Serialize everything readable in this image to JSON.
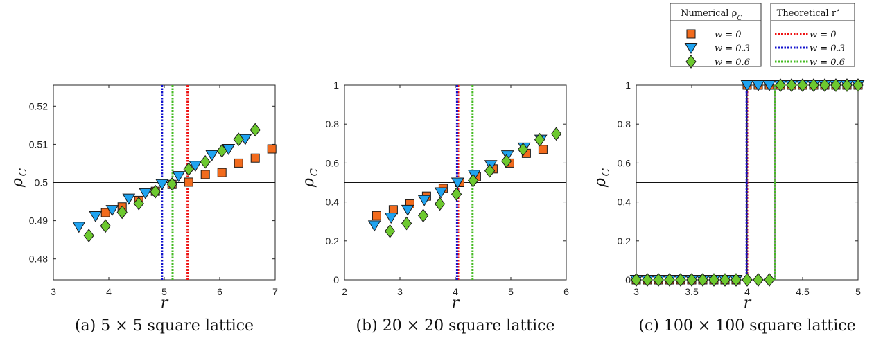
{
  "colors": {
    "w0_marker": "#F26B1D",
    "w03_marker": "#1FA3F0",
    "w06_marker": "#6DC92F",
    "w0_line": "#EE1111",
    "w03_line": "#1111CC",
    "w06_line": "#44BB22",
    "marker_edge": "#1a1a1a"
  },
  "legend": {
    "numerical": {
      "title": "Numerical ρ",
      "title_sub": "C",
      "entries": [
        {
          "series": "w0",
          "marker": "square",
          "label": "w = 0"
        },
        {
          "series": "w03",
          "marker": "triangle-down",
          "label": "w = 0.3"
        },
        {
          "series": "w06",
          "marker": "diamond",
          "label": "w = 0.6"
        }
      ]
    },
    "theoretical": {
      "title": "Theoretical r",
      "title_sup": "⋆",
      "entries": [
        {
          "series": "w0",
          "style": "dotted-line",
          "label": "w = 0"
        },
        {
          "series": "w03",
          "style": "dotted-line",
          "label": "w = 0.3"
        },
        {
          "series": "w06",
          "style": "dotted-line",
          "label": "w = 0.6"
        }
      ]
    }
  },
  "chart_data": [
    {
      "type": "scatter",
      "caption": "(a) 5 × 5 square lattice",
      "xlabel": "r",
      "ylabel": "ρ",
      "ylabel_sub": "C",
      "xlim": [
        3,
        7
      ],
      "ylim": [
        0.4745,
        0.5255
      ],
      "xticks": [
        3,
        4,
        5,
        6,
        7
      ],
      "yticks": [
        0.48,
        0.49,
        0.5,
        0.51,
        0.52
      ],
      "ytick_labels": [
        "0.48",
        "0.49",
        "0.5",
        "0.51",
        "0.52"
      ],
      "hline": 0.5,
      "vlines": [
        {
          "series": "w0",
          "x": 5.42
        },
        {
          "series": "w03",
          "x": 4.96
        },
        {
          "series": "w06",
          "x": 5.15
        }
      ],
      "series": [
        {
          "series": "w0",
          "marker": "square",
          "x": [
            3.94,
            4.24,
            4.54,
            4.84,
            5.14,
            5.44,
            5.74,
            6.04,
            6.34,
            6.64,
            6.94
          ],
          "y": [
            0.4921,
            0.4936,
            0.4953,
            0.4977,
            0.4995,
            0.5001,
            0.5021,
            0.5026,
            0.5051,
            0.5064,
            0.5088
          ]
        },
        {
          "series": "w03",
          "marker": "triangle-down",
          "x": [
            3.46,
            3.76,
            4.06,
            4.36,
            4.66,
            4.96,
            5.26,
            5.56,
            5.86,
            6.16,
            6.46
          ],
          "y": [
            0.4884,
            0.4912,
            0.4928,
            0.4958,
            0.4972,
            0.4996,
            0.5017,
            0.5044,
            0.5072,
            0.5088,
            0.5114
          ]
        },
        {
          "series": "w06",
          "marker": "diamond",
          "x": [
            3.64,
            3.94,
            4.24,
            4.54,
            4.84,
            5.14,
            5.44,
            5.74,
            6.04,
            6.34,
            6.64
          ],
          "y": [
            0.4861,
            0.4886,
            0.4922,
            0.4945,
            0.4976,
            0.4996,
            0.5035,
            0.5054,
            0.5083,
            0.5113,
            0.5138
          ]
        }
      ]
    },
    {
      "type": "scatter",
      "caption": "(b) 20 × 20 square lattice",
      "xlabel": "r",
      "ylabel": "ρ",
      "ylabel_sub": "C",
      "xlim": [
        2,
        6
      ],
      "ylim": [
        0,
        1
      ],
      "xticks": [
        2,
        3,
        4,
        5,
        6
      ],
      "yticks": [
        0,
        0.2,
        0.4,
        0.6,
        0.8,
        1
      ],
      "ytick_labels": [
        "0",
        "0.2",
        "0.4",
        "0.6",
        "0.8",
        "1"
      ],
      "hline": 0.5,
      "vlines": [
        {
          "series": "w0",
          "x": 4.05
        },
        {
          "series": "w03",
          "x": 4.03
        },
        {
          "series": "w06",
          "x": 4.31
        }
      ],
      "series": [
        {
          "series": "w0",
          "marker": "square",
          "x": [
            2.58,
            2.88,
            3.18,
            3.48,
            3.78,
            4.08,
            4.38,
            4.68,
            4.98,
            5.28,
            5.58
          ],
          "y": [
            0.33,
            0.36,
            0.39,
            0.43,
            0.47,
            0.5,
            0.53,
            0.57,
            0.6,
            0.65,
            0.67
          ]
        },
        {
          "series": "w03",
          "marker": "triangle-down",
          "x": [
            2.54,
            2.84,
            3.14,
            3.44,
            3.74,
            4.04,
            4.34,
            4.64,
            4.94,
            5.24,
            5.54
          ],
          "y": [
            0.28,
            0.32,
            0.36,
            0.41,
            0.45,
            0.5,
            0.54,
            0.59,
            0.64,
            0.68,
            0.72
          ]
        },
        {
          "series": "w06",
          "marker": "diamond",
          "x": [
            2.82,
            3.12,
            3.42,
            3.72,
            4.02,
            4.32,
            4.62,
            4.92,
            5.22,
            5.52,
            5.82
          ],
          "y": [
            0.25,
            0.29,
            0.33,
            0.39,
            0.44,
            0.51,
            0.56,
            0.61,
            0.67,
            0.72,
            0.75
          ]
        }
      ]
    },
    {
      "type": "scatter",
      "caption": "(c) 100 × 100 square lattice",
      "xlabel": "r",
      "ylabel": "ρ",
      "ylabel_sub": "C",
      "xlim": [
        3,
        5
      ],
      "ylim": [
        0,
        1
      ],
      "xticks": [
        3,
        3.5,
        4,
        4.5,
        5
      ],
      "xtick_labels": [
        "3",
        "3.5",
        "4",
        "4.5",
        "5"
      ],
      "yticks": [
        0,
        0.2,
        0.4,
        0.6,
        0.8,
        1
      ],
      "ytick_labels": [
        "0",
        "0.2",
        "0.4",
        "0.6",
        "0.8",
        "1"
      ],
      "hline": 0.5,
      "vlines": [
        {
          "series": "w0",
          "x": 4.0
        },
        {
          "series": "w03",
          "x": 3.995
        },
        {
          "series": "w06",
          "x": 4.25
        }
      ],
      "steps": [
        {
          "series": "w0",
          "x": 4.0
        },
        {
          "series": "w03",
          "x": 3.995
        },
        {
          "series": "w06",
          "x": 4.25
        }
      ],
      "series": [
        {
          "series": "w0",
          "marker": "square",
          "x": [
            3.0,
            3.1,
            3.2,
            3.3,
            3.4,
            3.5,
            3.6,
            3.7,
            3.8,
            3.9,
            4.0,
            4.1,
            4.2,
            4.3,
            4.4,
            4.5,
            4.6,
            4.7,
            4.8,
            4.9,
            5.0
          ],
          "y": [
            0,
            0,
            0,
            0,
            0,
            0,
            0,
            0,
            0,
            0,
            1,
            1,
            1,
            1,
            1,
            1,
            1,
            1,
            1,
            1,
            1
          ]
        },
        {
          "series": "w03",
          "marker": "triangle-down",
          "x": [
            3.0,
            3.1,
            3.2,
            3.3,
            3.4,
            3.5,
            3.6,
            3.7,
            3.8,
            3.9,
            4.0,
            4.1,
            4.2,
            4.3,
            4.4,
            4.5,
            4.6,
            4.7,
            4.8,
            4.9,
            5.0
          ],
          "y": [
            0,
            0,
            0,
            0,
            0,
            0,
            0,
            0,
            0,
            0,
            1,
            1,
            1,
            1,
            1,
            1,
            1,
            1,
            1,
            1,
            1
          ]
        },
        {
          "series": "w06",
          "marker": "diamond",
          "x": [
            3.0,
            3.1,
            3.2,
            3.3,
            3.4,
            3.5,
            3.6,
            3.7,
            3.8,
            3.9,
            4.0,
            4.1,
            4.2,
            4.3,
            4.4,
            4.5,
            4.6,
            4.7,
            4.8,
            4.9,
            5.0
          ],
          "y": [
            0,
            0,
            0,
            0,
            0,
            0,
            0,
            0,
            0,
            0,
            0,
            0,
            0,
            1,
            1,
            1,
            1,
            1,
            1,
            1,
            1
          ]
        }
      ]
    }
  ]
}
